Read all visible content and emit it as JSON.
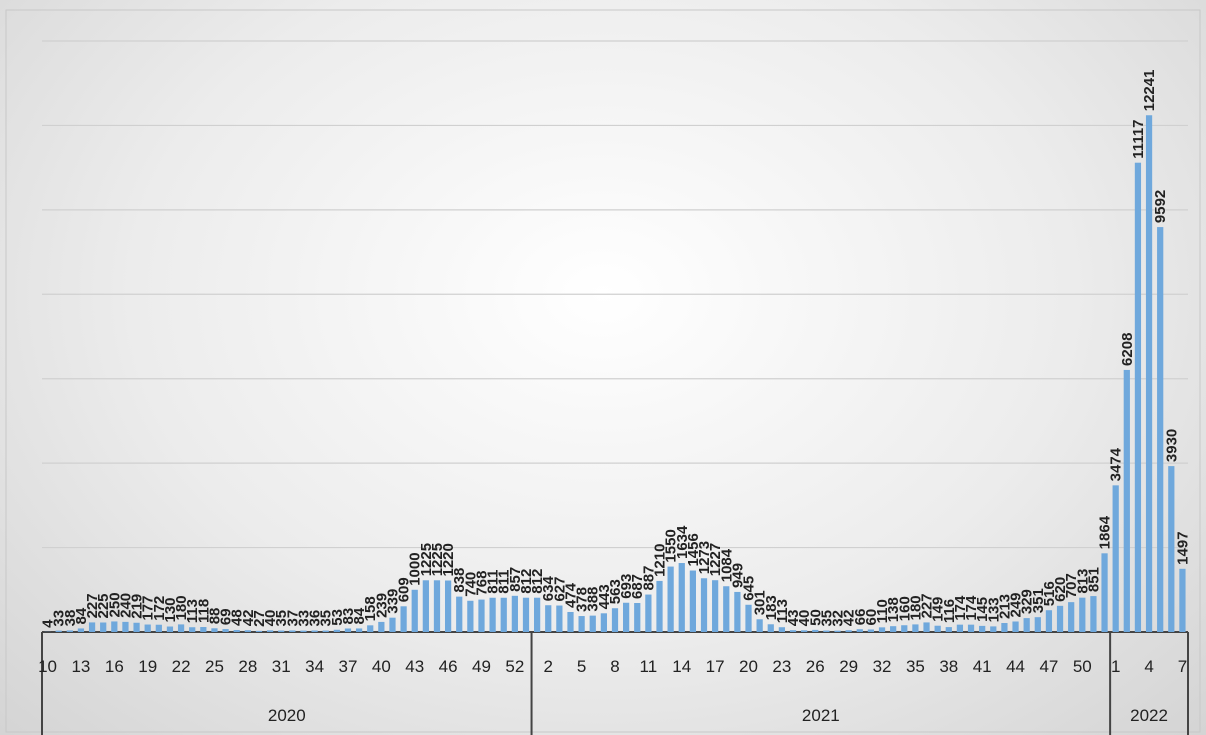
{
  "chart_data": {
    "type": "bar",
    "color": "#6fa8dc",
    "label_color": "#8c8c8c",
    "ylim": [
      0,
      14000
    ],
    "yticks": [
      0,
      2000,
      4000,
      6000,
      8000,
      10000,
      12000,
      14000
    ],
    "grid": true,
    "groups": [
      {
        "name": "2020",
        "categories": [
          "10",
          null,
          null,
          "13",
          null,
          null,
          "16",
          null,
          null,
          "19",
          null,
          null,
          "22",
          null,
          null,
          "25",
          null,
          null,
          "28",
          null,
          null,
          "31",
          null,
          null,
          "34",
          null,
          null,
          "37",
          null,
          null,
          "40",
          null,
          null,
          "43",
          null,
          null,
          "46",
          null,
          null,
          "49",
          null,
          null,
          "52",
          null
        ],
        "values": [
          4,
          33,
          38,
          84,
          227,
          225,
          250,
          240,
          219,
          177,
          172,
          130,
          180,
          113,
          118,
          88,
          69,
          48,
          42,
          27,
          40,
          35,
          37,
          33,
          36,
          35,
          53,
          83,
          84,
          158,
          239,
          339,
          609,
          1000,
          1225,
          1225,
          1220,
          838,
          740,
          768,
          811,
          811,
          857,
          812
        ]
      },
      {
        "name": "2021",
        "categories": [
          null,
          "2",
          null,
          null,
          "5",
          null,
          null,
          "8",
          null,
          null,
          "11",
          null,
          null,
          "14",
          null,
          null,
          "17",
          null,
          null,
          "20",
          null,
          null,
          "23",
          null,
          null,
          "26",
          null,
          null,
          "29",
          null,
          null,
          "32",
          null,
          null,
          "35",
          null,
          null,
          "38",
          null,
          null,
          "41",
          null,
          null,
          "44",
          null,
          null,
          "47",
          null,
          null,
          "50",
          null,
          null
        ],
        "values": [
          812,
          634,
          627,
          474,
          378,
          388,
          443,
          563,
          693,
          687,
          887,
          1210,
          1550,
          1634,
          1456,
          1273,
          1227,
          1084,
          949,
          645,
          301,
          183,
          113,
          43,
          40,
          50,
          35,
          32,
          42,
          66,
          60,
          110,
          138,
          160,
          180,
          227,
          149,
          116,
          174,
          174,
          145,
          133,
          213,
          249,
          329,
          351,
          516,
          620,
          707,
          813,
          851,
          1864
        ]
      },
      {
        "name": "2022",
        "categories": [
          "1",
          null,
          null,
          "4",
          null,
          null,
          "7"
        ],
        "values": [
          3474,
          6208,
          11117,
          12241,
          9592,
          3930,
          1497
        ]
      }
    ]
  }
}
